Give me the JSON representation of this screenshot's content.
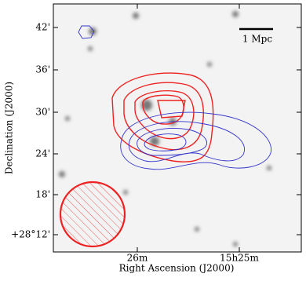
{
  "axes": {
    "x_label": "Right Ascension (J2000)",
    "y_label": "Declination (J2000)",
    "x_ticks": [
      "26m",
      "15h25m"
    ],
    "y_ticks": [
      "42'",
      "36'",
      "30'",
      "24'",
      "18'",
      "+28°12'"
    ]
  },
  "scale_bar": {
    "label": "1 Mpc"
  }
}
